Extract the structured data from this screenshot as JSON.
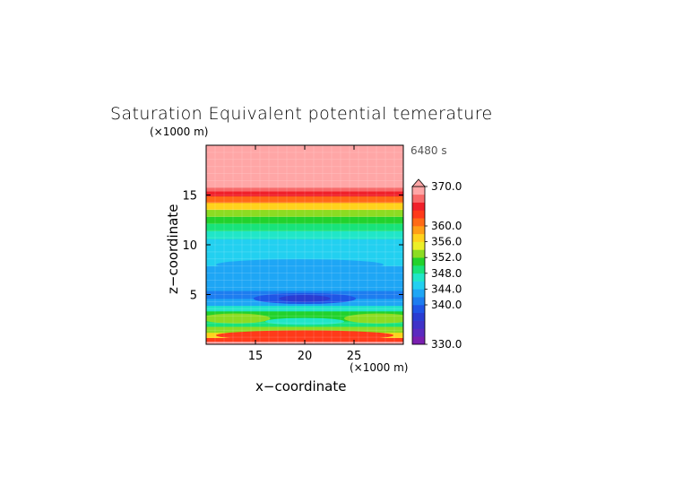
{
  "chart_data": {
    "type": "heatmap",
    "title": "Saturation Equivalent potential temerature",
    "time_label": "6480 s",
    "xlabel": "x−coordinate",
    "ylabel": "z−coordinate",
    "x_unit": "(×1000 m)",
    "y_unit": "(×1000 m)",
    "xlim": [
      10,
      30
    ],
    "ylim": [
      0,
      20
    ],
    "x_ticks": [
      "15",
      "20",
      "25"
    ],
    "y_ticks": [
      "5",
      "10",
      "15"
    ],
    "colorbar": {
      "levels": [
        330,
        332,
        334,
        336,
        338,
        340,
        342,
        344,
        346,
        348,
        350,
        352,
        354,
        356,
        358,
        360,
        362,
        364,
        366,
        368,
        370
      ],
      "tick_labels": [
        "330.0",
        "340.0",
        "344.0",
        "348.0",
        "352.0",
        "356.0",
        "360.0",
        "370.0"
      ],
      "colors": [
        "#7a1fb0",
        "#5b2bc0",
        "#4033c8",
        "#2a3cd2",
        "#1f55e6",
        "#1d7df0",
        "#1ea6f5",
        "#22d0f0",
        "#20e6c8",
        "#18e37a",
        "#22d22c",
        "#8cdc22",
        "#ecef28",
        "#ffd21c",
        "#ff9e16",
        "#ff6a16",
        "#ff3a1a",
        "#f0202a",
        "#f86a6a",
        "#ffa6a6"
      ],
      "extend_top_color": "#ffa6a6"
    },
    "profile": [
      {
        "z": 0.15,
        "value": 368
      },
      {
        "z": 0.45,
        "value": 362
      },
      {
        "z": 0.9,
        "value": 356
      },
      {
        "z": 1.5,
        "value": 352
      },
      {
        "z": 2.1,
        "value": 349
      },
      {
        "z": 2.6,
        "value": 350
      },
      {
        "z": 3.1,
        "value": 351
      },
      {
        "z": 3.6,
        "value": 347
      },
      {
        "z": 4.2,
        "value": 343
      },
      {
        "z": 5.0,
        "value": 341
      },
      {
        "z": 5.8,
        "value": 342
      },
      {
        "z": 6.6,
        "value": 343
      },
      {
        "z": 7.4,
        "value": 343
      },
      {
        "z": 8.4,
        "value": 344
      },
      {
        "z": 9.3,
        "value": 344
      },
      {
        "z": 10.2,
        "value": 345
      },
      {
        "z": 11.0,
        "value": 346
      },
      {
        "z": 11.8,
        "value": 348
      },
      {
        "z": 12.5,
        "value": 350
      },
      {
        "z": 13.2,
        "value": 353
      },
      {
        "z": 13.9,
        "value": 356
      },
      {
        "z": 14.6,
        "value": 360
      },
      {
        "z": 15.2,
        "value": 364
      },
      {
        "z": 15.6,
        "value": 367
      },
      {
        "z": 16.0,
        "value": 370
      },
      {
        "z": 20.0,
        "value": 372
      }
    ],
    "features": [
      {
        "name": "minimum-core",
        "cx": 20.0,
        "cz": 4.6,
        "rx": 5.2,
        "rz": 0.55,
        "value": 339
      },
      {
        "name": "minimum-core-inner",
        "cx": 20.0,
        "cz": 4.6,
        "rx": 2.6,
        "rz": 0.35,
        "value": 337
      },
      {
        "name": "mid-band",
        "cx": 19.5,
        "cz": 8.0,
        "rx": 8.5,
        "rz": 0.55,
        "value": 342
      },
      {
        "name": "low-warm-left",
        "cx": 13.0,
        "cz": 2.6,
        "rx": 3.5,
        "rz": 0.5,
        "value": 353
      },
      {
        "name": "low-warm-right",
        "cx": 27.5,
        "cz": 2.6,
        "rx": 3.5,
        "rz": 0.5,
        "value": 353
      },
      {
        "name": "low-cool-center",
        "cx": 20.0,
        "cz": 2.3,
        "rx": 4.0,
        "rz": 0.35,
        "value": 347
      },
      {
        "name": "surface-warm",
        "cx": 20.0,
        "cz": 0.9,
        "rx": 9.0,
        "rz": 0.5,
        "value": 362
      }
    ]
  }
}
